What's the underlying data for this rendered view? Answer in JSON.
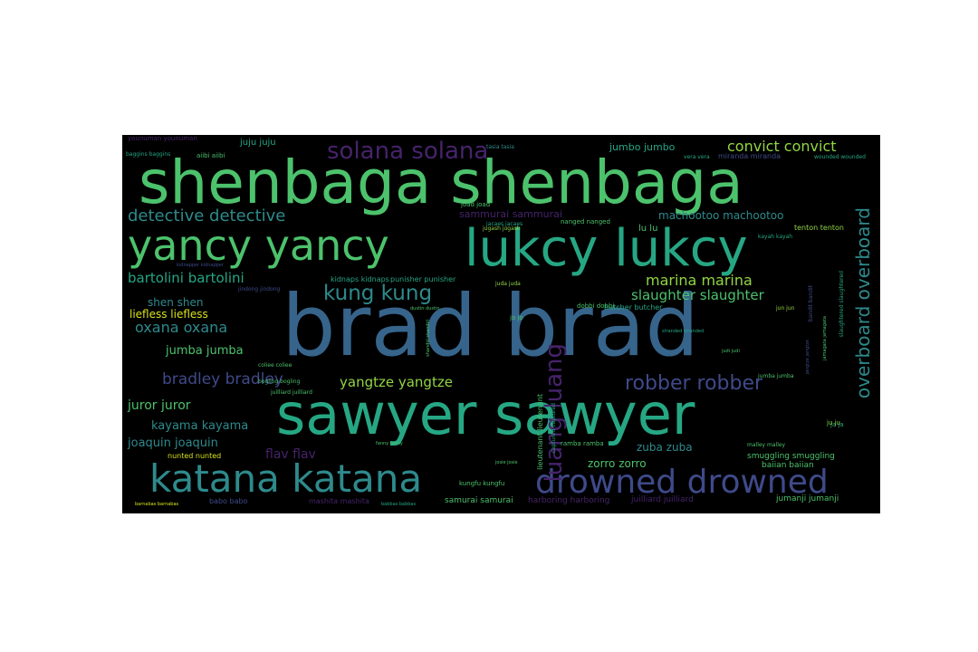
{
  "colors": {
    "background": "#000000",
    "page": "#ffffff",
    "purple": "#46236b",
    "indigo": "#3f4a8a",
    "blue": "#36648b",
    "teal": "#2e8a8c",
    "sea": "#26a784",
    "green": "#4cc26c",
    "lime": "#92d543",
    "yellow": "#d8e219"
  },
  "words": [
    {
      "text": "shenbaga shenbaga",
      "color": "green"
    },
    {
      "text": "brad brad",
      "color": "blue"
    },
    {
      "text": "sawyer sawyer",
      "color": "sea"
    },
    {
      "text": "lukcy lukcy",
      "color": "sea"
    },
    {
      "text": "yancy yancy",
      "color": "green"
    },
    {
      "text": "katana katana",
      "color": "teal"
    },
    {
      "text": "drowned drowned",
      "color": "indigo"
    },
    {
      "text": "solana solana",
      "color": "purple"
    },
    {
      "text": "detective detective",
      "color": "teal"
    },
    {
      "text": "convict convict",
      "color": "lime"
    },
    {
      "text": "kung kung",
      "color": "teal"
    },
    {
      "text": "marina marina",
      "color": "lime"
    },
    {
      "text": "robber robber",
      "color": "indigo"
    },
    {
      "text": "luang luang",
      "color": "purple"
    },
    {
      "text": "overboard overboard",
      "color": "teal"
    },
    {
      "text": "bartolini bartolini",
      "color": "sea"
    },
    {
      "text": "slaughter slaughter",
      "color": "green"
    },
    {
      "text": "oxana oxana",
      "color": "teal"
    },
    {
      "text": "bradley bradley",
      "color": "indigo"
    },
    {
      "text": "yangtze yangtze",
      "color": "lime"
    },
    {
      "text": "jumba jumba",
      "color": "green"
    },
    {
      "text": "juror juror",
      "color": "green"
    },
    {
      "text": "kayama kayama",
      "color": "teal"
    },
    {
      "text": "joaquin joaquin",
      "color": "teal"
    },
    {
      "text": "flav flav",
      "color": "purple"
    },
    {
      "text": "shen shen",
      "color": "teal"
    },
    {
      "text": "liefless liefless",
      "color": "yellow"
    },
    {
      "text": "machootoo machootoo",
      "color": "teal"
    },
    {
      "text": "sammurai sammurai",
      "color": "purple"
    },
    {
      "text": "jumbo jumbo",
      "color": "sea"
    },
    {
      "text": "juju juju",
      "color": "sea"
    },
    {
      "text": "lu lu",
      "color": "green"
    },
    {
      "text": "zuba zuba",
      "color": "teal"
    },
    {
      "text": "zorro zorro",
      "color": "green"
    },
    {
      "text": "smuggling smuggling",
      "color": "green"
    },
    {
      "text": "baiian baiian",
      "color": "green"
    },
    {
      "text": "jumanji jumanji",
      "color": "green"
    },
    {
      "text": "harboring harboring",
      "color": "purple"
    },
    {
      "text": "juilliard juilliard",
      "color": "purple"
    },
    {
      "text": "samurai samurai",
      "color": "green"
    },
    {
      "text": "mashita mashita",
      "color": "purple"
    },
    {
      "text": "babo babo",
      "color": "indigo"
    },
    {
      "text": "nunted nunted",
      "color": "yellow"
    },
    {
      "text": "kidnaps kidnaps",
      "color": "sea"
    },
    {
      "text": "punisher punisher",
      "color": "sea"
    },
    {
      "text": "butcher butcher",
      "color": "sea"
    },
    {
      "text": "tenton tenton",
      "color": "lime"
    },
    {
      "text": "nanged nanged",
      "color": "green"
    },
    {
      "text": "joad joad",
      "color": "green"
    },
    {
      "text": "jacaes jacaes",
      "color": "sea"
    },
    {
      "text": "ja ja",
      "color": "sea"
    },
    {
      "text": "jugash jugash",
      "color": "lime"
    },
    {
      "text": "miranda miranda",
      "color": "indigo"
    },
    {
      "text": "younuman younuman",
      "color": "purple"
    },
    {
      "text": "baggins baggins",
      "color": "sea"
    },
    {
      "text": "aiibi aiibi",
      "color": "green"
    },
    {
      "text": "wounded wounded",
      "color": "sea"
    },
    {
      "text": "vera vera",
      "color": "sea"
    },
    {
      "text": "tasia tasia",
      "color": "teal"
    },
    {
      "text": "kayah kayah",
      "color": "sea"
    },
    {
      "text": "juda juda",
      "color": "lime"
    },
    {
      "text": "dobbi dobbi",
      "color": "green"
    },
    {
      "text": "jo jo",
      "color": "green"
    },
    {
      "text": "jun jun",
      "color": "lime"
    },
    {
      "text": "jumba jumba",
      "color": "green"
    },
    {
      "text": "ju ju",
      "color": "lime"
    },
    {
      "text": "kungfu kungfu",
      "color": "green"
    },
    {
      "text": "ramba ramba",
      "color": "green"
    },
    {
      "text": "malley malley",
      "color": "green"
    },
    {
      "text": "coliee coliee",
      "color": "green"
    },
    {
      "text": "juilliard juilliard",
      "color": "green"
    },
    {
      "text": "bogling bogling",
      "color": "green"
    },
    {
      "text": "barnabas barnabas",
      "color": "yellow"
    },
    {
      "text": "babbas babbas",
      "color": "sea"
    },
    {
      "text": "fanny fanny",
      "color": "green"
    },
    {
      "text": "josie josie",
      "color": "green"
    },
    {
      "text": "dustin dustin",
      "color": "green"
    },
    {
      "text": "jindong jindong",
      "color": "indigo"
    },
    {
      "text": "kidnapper kidnapper",
      "color": "indigo"
    },
    {
      "text": "stranded stranded",
      "color": "sea"
    },
    {
      "text": "judi judi",
      "color": "green"
    },
    {
      "text": "lieutenant lieutenant",
      "color": "green"
    },
    {
      "text": "captured captured",
      "color": "sea"
    },
    {
      "text": "slaughtered slaughtered",
      "color": "sea"
    },
    {
      "text": "jamagata jamagata",
      "color": "green"
    },
    {
      "text": "jangtze jangtze",
      "color": "indigo"
    },
    {
      "text": "shandol shandol",
      "color": "green"
    },
    {
      "text": "bandit bandit",
      "color": "indigo"
    }
  ]
}
